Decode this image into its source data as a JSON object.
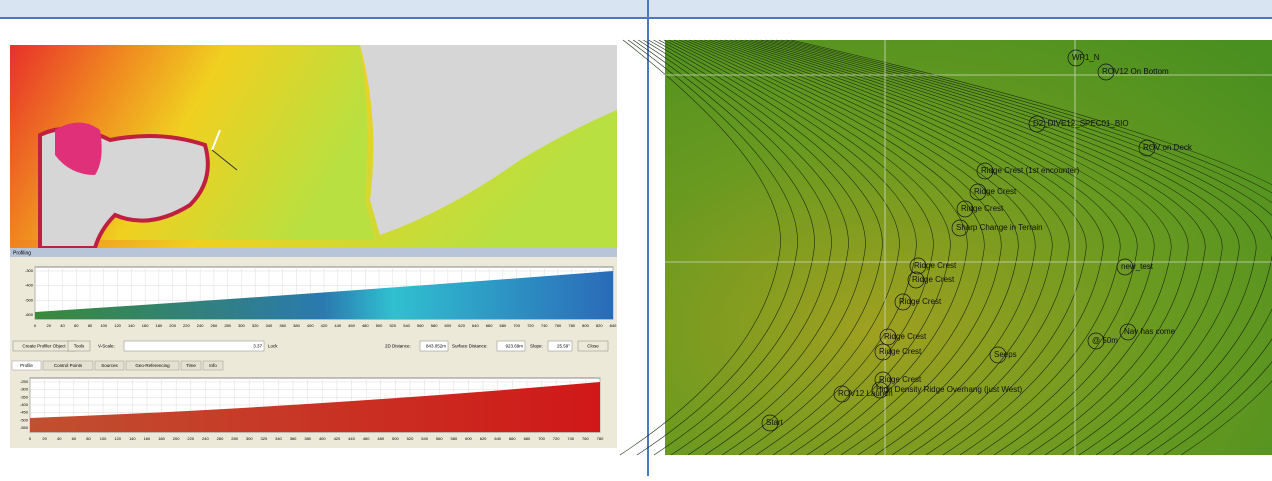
{
  "left": {
    "profile_window": {
      "title": "Profiling",
      "chart1": {
        "xticks": [
          0,
          20,
          40,
          60,
          80,
          100,
          120,
          140,
          160,
          180,
          200,
          220,
          240,
          260,
          280,
          300,
          320,
          340,
          360,
          380,
          400,
          420,
          440,
          460,
          480,
          500,
          520,
          540,
          560,
          580,
          600,
          620,
          640,
          660,
          680,
          700,
          720,
          740,
          760,
          780,
          800,
          820,
          840
        ],
        "yticks": [
          -300,
          -400,
          -500,
          -600
        ]
      },
      "toolbar": {
        "create": "Create Profiler Object",
        "tools": "Tools",
        "vscale_label": "V-Scale:",
        "vscale": "3.37",
        "lock": "Lock",
        "dist2d_label": "2D Distance:",
        "dist2d": "843.052m",
        "surface_label": "Surface Distance:",
        "surface": "923.69m",
        "slope_label": "Slope:",
        "slope": "25.59°",
        "close": "Close"
      },
      "tabs": [
        "Profile",
        "Control Points",
        "Sources",
        "Geo-Referencing",
        "Time",
        "Info"
      ],
      "chart2": {
        "xticks": [
          0,
          20,
          40,
          60,
          80,
          100,
          120,
          140,
          160,
          180,
          200,
          220,
          240,
          260,
          280,
          300,
          320,
          340,
          360,
          380,
          400,
          420,
          440,
          460,
          480,
          500,
          520,
          540,
          560,
          580,
          600,
          620,
          640,
          660,
          680,
          700,
          720,
          740,
          760,
          780
        ],
        "yticks": [
          -250,
          -300,
          -350,
          -400,
          -450,
          -500,
          -550
        ]
      }
    }
  },
  "right": {
    "waypoints": [
      "WP1_N",
      "ROV12 On Bottom",
      "D2_DIVE12_SPEC01_BIO",
      "ROV on Deck",
      "Ridge Crest (1st encounter)",
      "Ridge Crest",
      "Ridge Crest",
      "Sharp Change in Terrain",
      "Ridge Crest",
      "Ridge Crest",
      "Ridge Crest",
      "Ridge Crest",
      "Ridge Crest",
      "Seeps",
      "Ridge Crest",
      "High Density Ridge Overhang (just West)",
      "ROV12 Launch",
      "Start",
      "new_test",
      "Nav has come",
      "@ 50m"
    ]
  }
}
